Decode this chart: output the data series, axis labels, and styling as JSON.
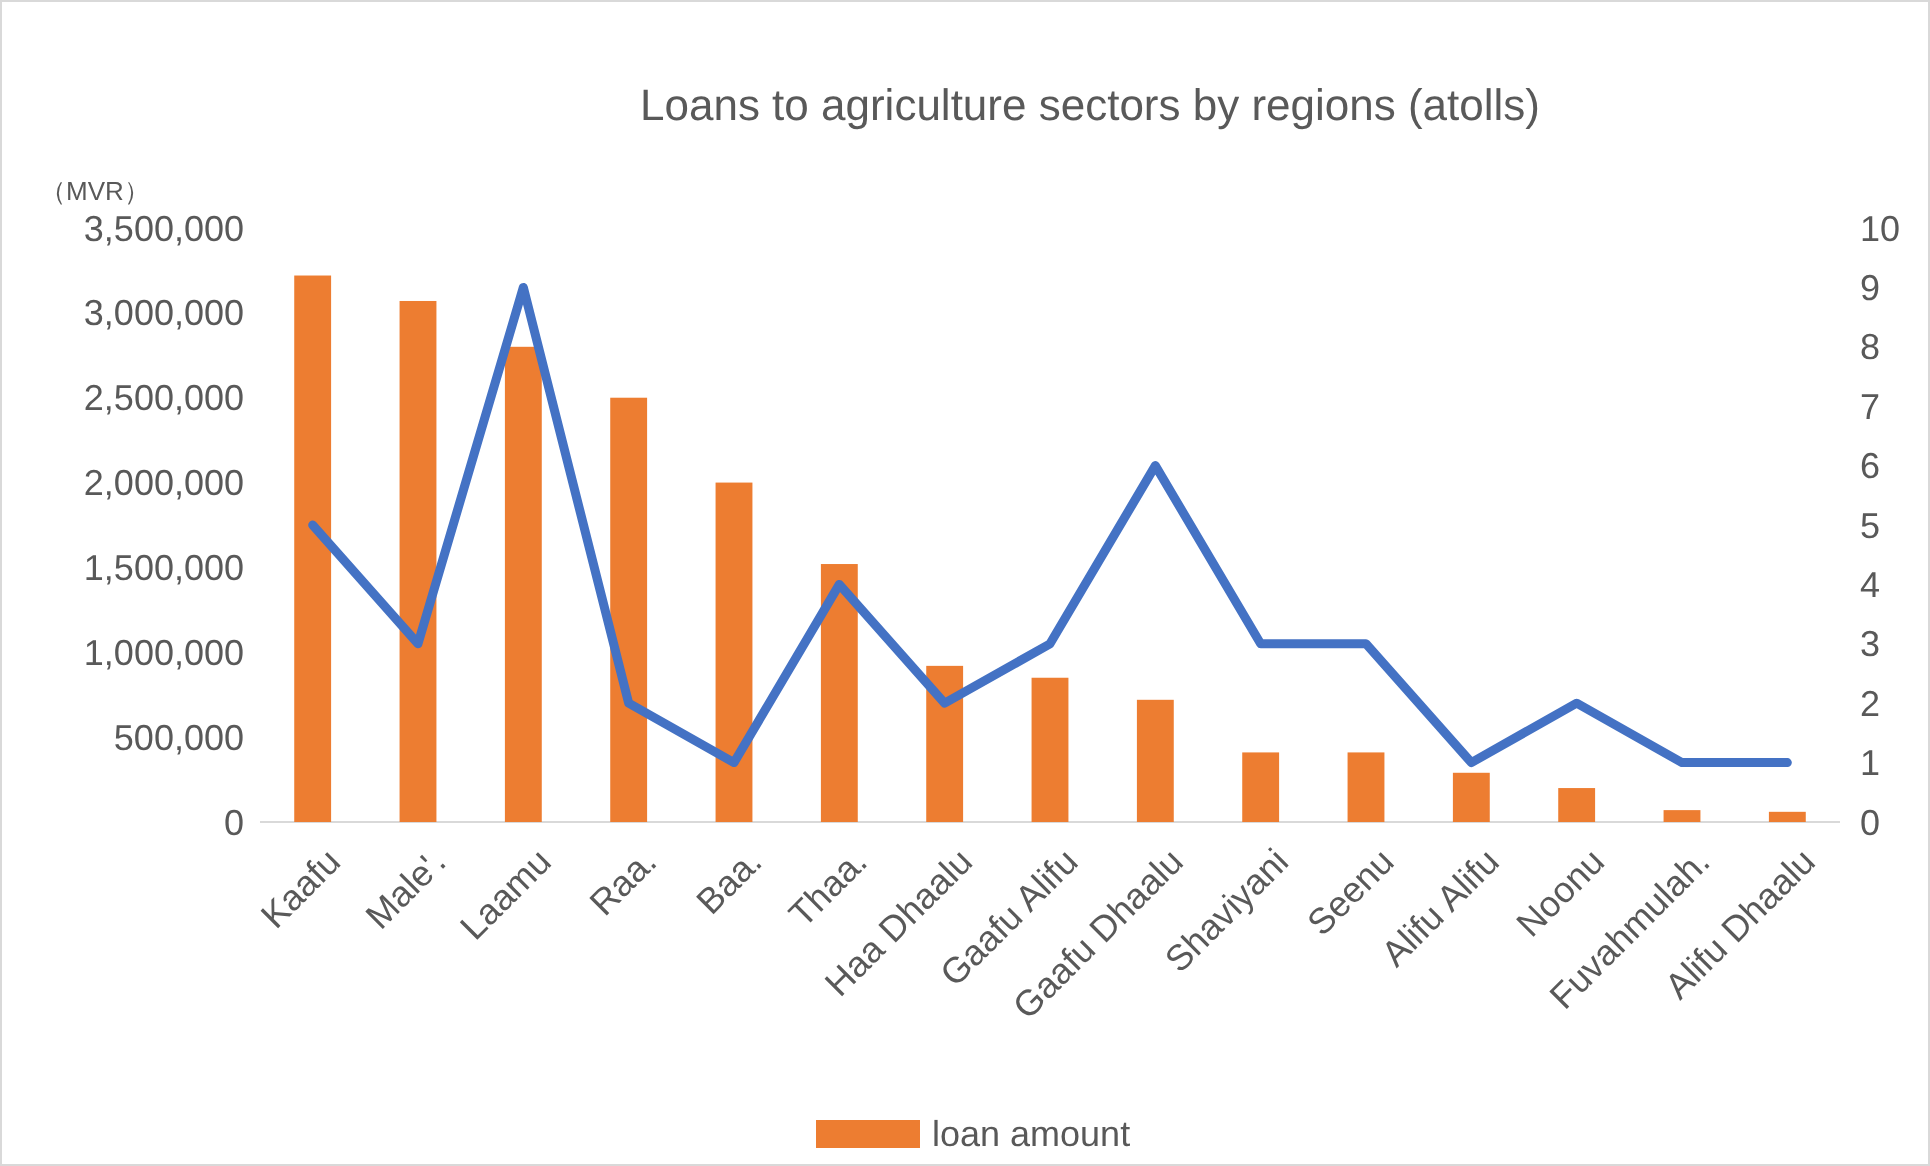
{
  "chart_data": {
    "type": "bar",
    "title": "Loans to agriculture sectors by regions (atolls)",
    "ylabel": "（MVR）",
    "categories": [
      "Kaafu",
      "Male'.",
      "Laamu",
      "Raa.",
      "Baa.",
      "Thaa.",
      "Haa Dhaalu",
      "Gaafu Alifu",
      "Gaafu Dhaalu",
      "Shaviyani",
      "Seenu",
      "Alifu Alifu",
      "Noonu",
      "Fuvahmulah.",
      "Alifu Dhaalu"
    ],
    "series": [
      {
        "name": "loan amount",
        "color": "#ed7d31",
        "values": [
          3220000,
          3070000,
          2800000,
          2500000,
          2000000,
          1520000,
          920000,
          850000,
          720000,
          410000,
          410000,
          290000,
          200000,
          70000,
          60000
        ]
      },
      {
        "type": "line",
        "axis": "y2",
        "color": "#4472c4",
        "values": [
          5,
          3,
          9,
          2,
          1,
          4,
          2,
          3,
          6,
          3,
          3,
          1,
          2,
          1,
          1
        ]
      }
    ],
    "ylim": [
      0,
      3500000
    ],
    "yticks": [
      {
        "value": 0,
        "label": "0"
      },
      {
        "value": 500000,
        "label": "500,000"
      },
      {
        "value": 1000000,
        "label": "1,000,000"
      },
      {
        "value": 1500000,
        "label": "1,500,000"
      },
      {
        "value": 2000000,
        "label": "2,000,000"
      },
      {
        "value": 2500000,
        "label": "2,500,000"
      },
      {
        "value": 3000000,
        "label": "3,000,000"
      },
      {
        "value": 3500000,
        "label": "3,500,000"
      }
    ],
    "y2lim": [
      0,
      10
    ],
    "y2ticks": [
      0,
      1,
      2,
      3,
      4,
      5,
      6,
      7,
      8,
      9,
      10
    ],
    "legend": "bottom",
    "grid": false
  }
}
